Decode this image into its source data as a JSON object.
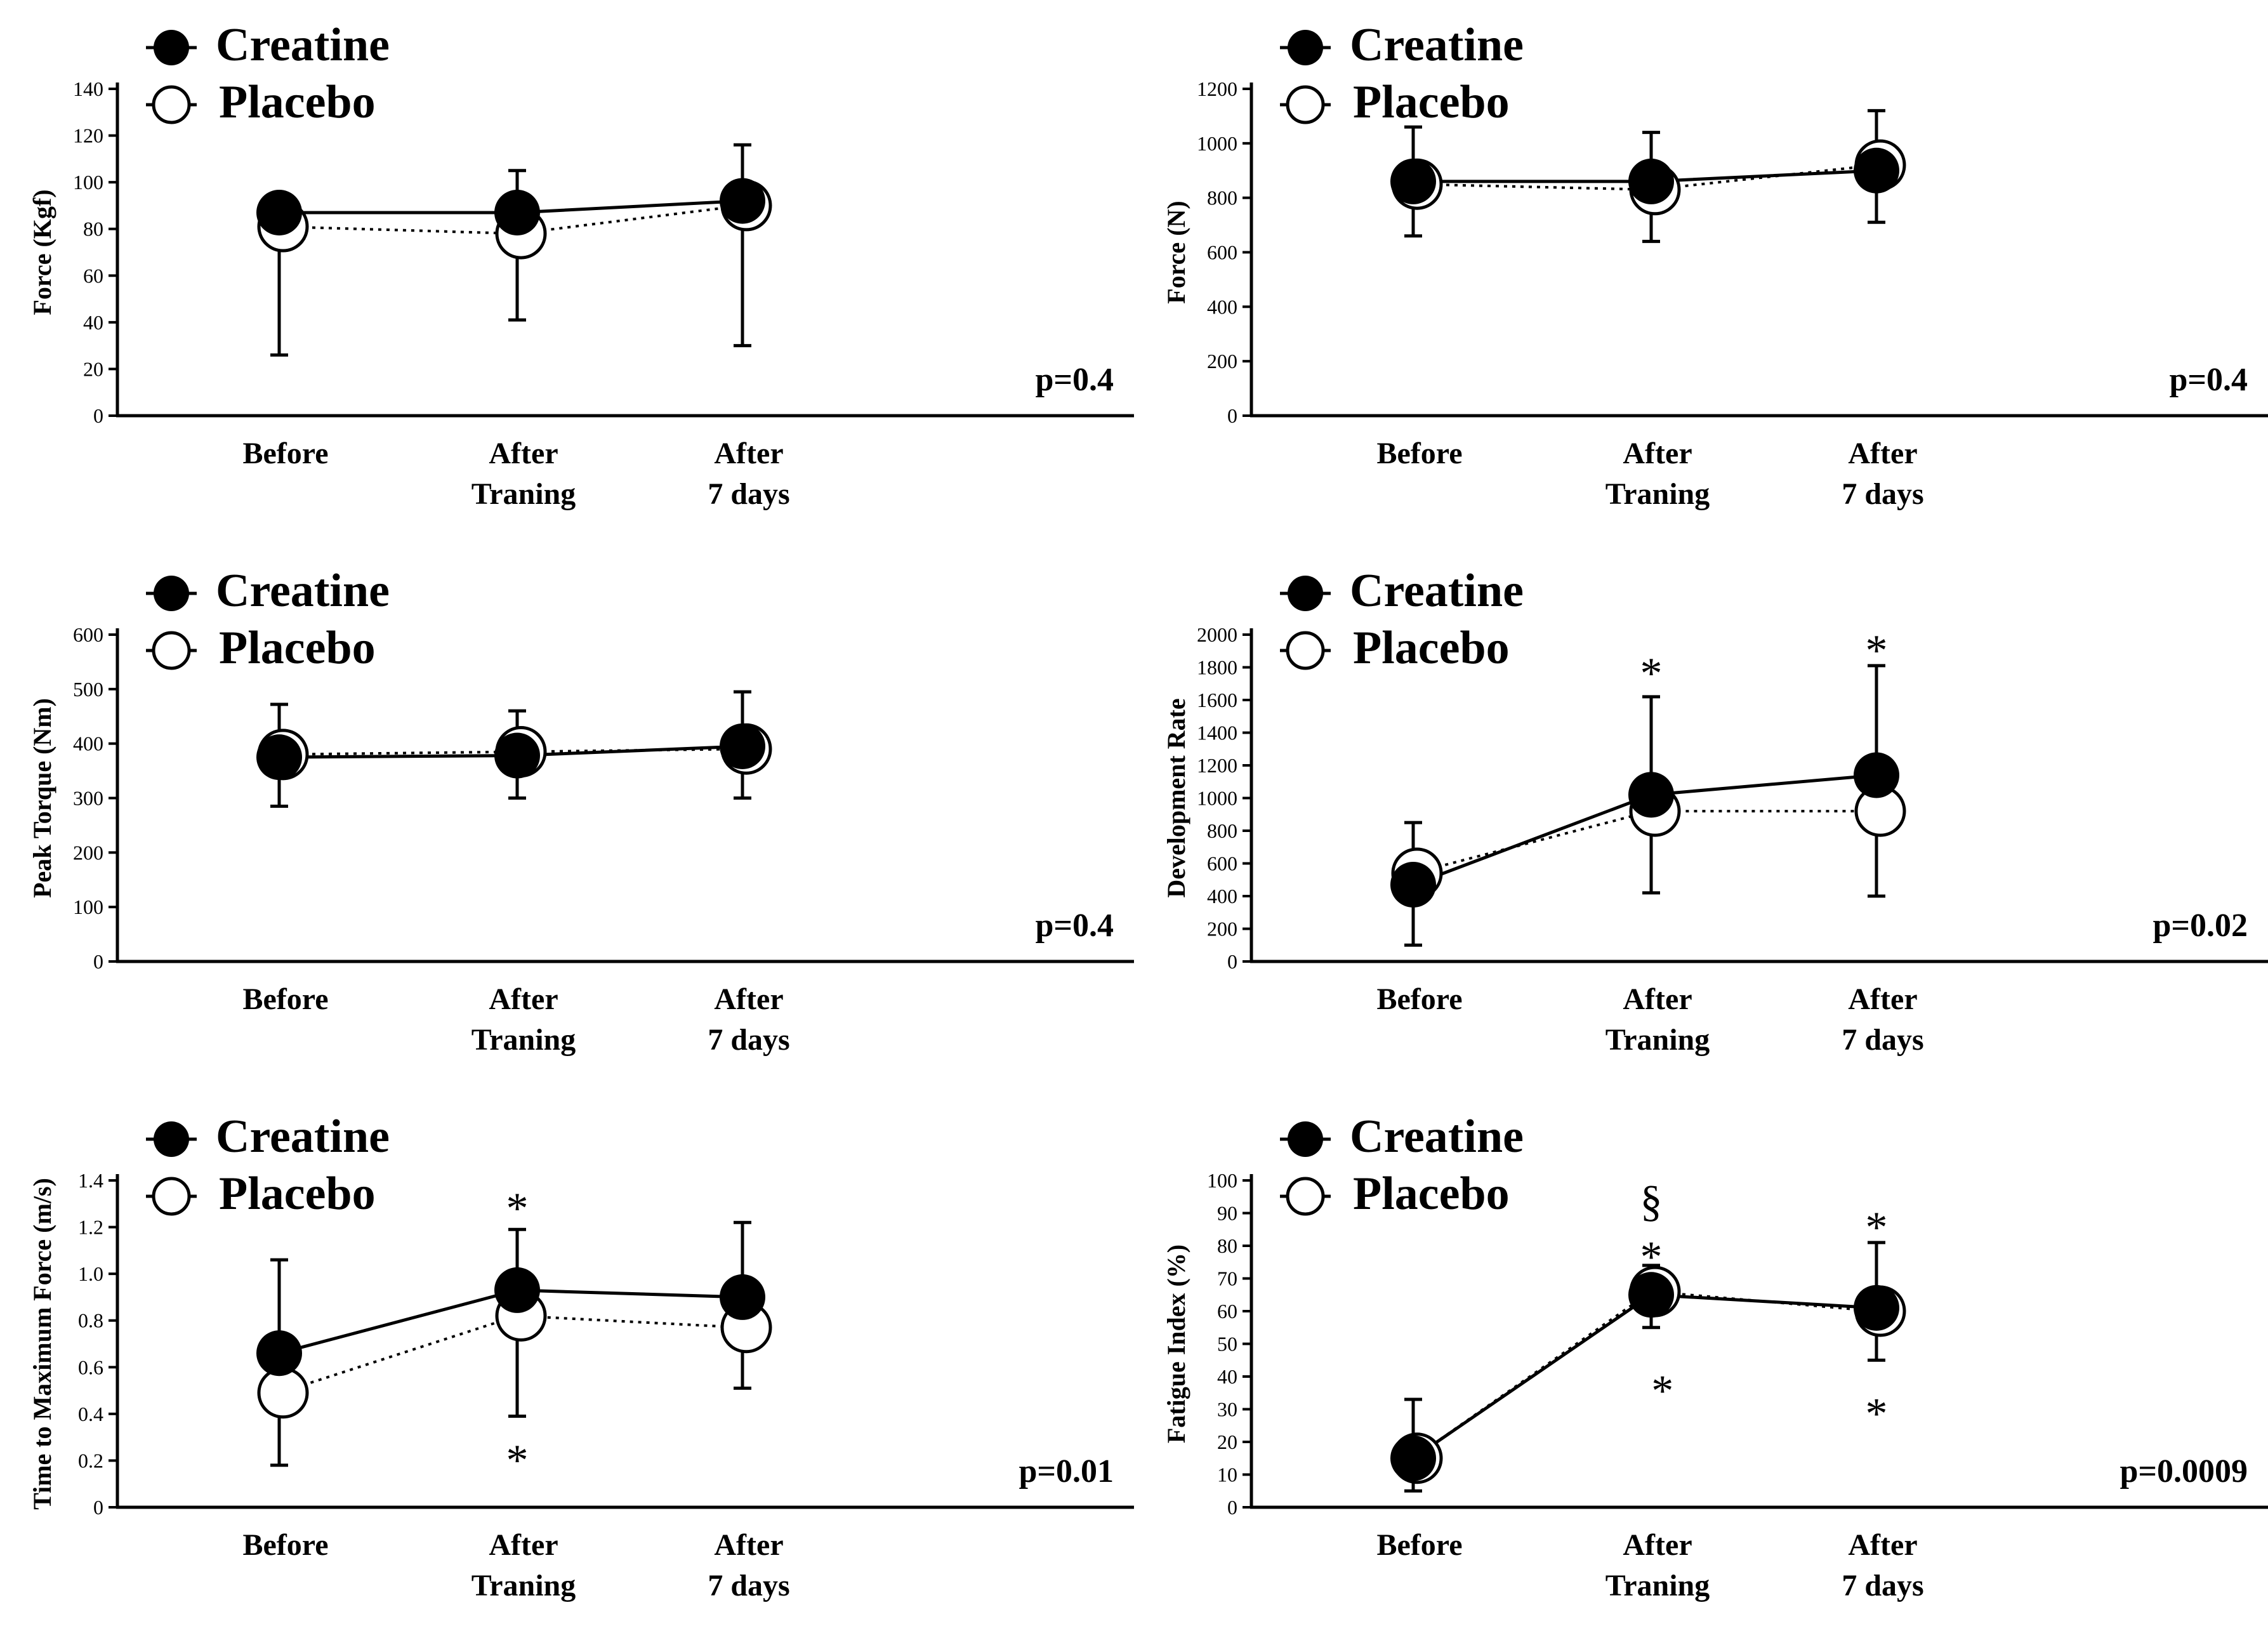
{
  "legend": {
    "creatine": "Creatine",
    "placebo": "Placebo"
  },
  "categories": [
    [
      "Before"
    ],
    [
      "After",
      "Traning"
    ],
    [
      "After",
      "7 days"
    ]
  ],
  "chart_data": [
    {
      "id": "p1",
      "type": "line",
      "title": "",
      "ylabel": "Force (Kgf)",
      "ylim": [
        0,
        140
      ],
      "yticks": [
        0,
        20,
        40,
        60,
        80,
        100,
        120,
        140
      ],
      "pvalue": "p=0.4",
      "series": [
        {
          "name": "Creatine",
          "values": [
            87,
            87,
            92
          ],
          "err_up": [
            0,
            18,
            24
          ],
          "err_down": [
            0,
            0,
            0
          ]
        },
        {
          "name": "Placebo",
          "values": [
            81,
            78,
            90
          ],
          "err_up": [
            0,
            0,
            0
          ],
          "err_down": [
            55,
            37,
            60
          ]
        }
      ],
      "annotations": []
    },
    {
      "id": "p2",
      "type": "line",
      "title": "",
      "ylabel": "Force (N)",
      "ylim": [
        0,
        1200
      ],
      "yticks": [
        0,
        200,
        400,
        600,
        800,
        1000,
        1200
      ],
      "pvalue": "p=0.4",
      "series": [
        {
          "name": "Creatine",
          "values": [
            860,
            860,
            900
          ],
          "err_up": [
            200,
            180,
            220
          ],
          "err_down": [
            0,
            0,
            0
          ]
        },
        {
          "name": "Placebo",
          "values": [
            850,
            830,
            920
          ],
          "err_up": [
            0,
            0,
            0
          ],
          "err_down": [
            190,
            190,
            210
          ]
        }
      ],
      "annotations": []
    },
    {
      "id": "p3",
      "type": "line",
      "title": "",
      "ylabel": "Peak Torque (Nm)",
      "ylim": [
        0,
        600
      ],
      "yticks": [
        0,
        100,
        200,
        300,
        400,
        500,
        600
      ],
      "pvalue": "p=0.4",
      "series": [
        {
          "name": "Creatine",
          "values": [
            375,
            378,
            395
          ],
          "err_up": [
            97,
            82,
            100
          ],
          "err_down": [
            0,
            0,
            0
          ]
        },
        {
          "name": "Placebo",
          "values": [
            380,
            385,
            390
          ],
          "err_up": [
            0,
            0,
            0
          ],
          "err_down": [
            95,
            85,
            90
          ]
        }
      ],
      "annotations": []
    },
    {
      "id": "p4",
      "type": "line",
      "title": "",
      "ylabel": "Development Rate",
      "ylim": [
        0,
        2000
      ],
      "yticks": [
        0,
        200,
        400,
        600,
        800,
        1000,
        1200,
        1400,
        1600,
        1800,
        2000
      ],
      "pvalue": "p=0.02",
      "series": [
        {
          "name": "Creatine",
          "values": [
            470,
            1020,
            1140
          ],
          "err_up": [
            380,
            600,
            670
          ],
          "err_down": [
            0,
            0,
            0
          ]
        },
        {
          "name": "Placebo",
          "values": [
            540,
            920,
            920
          ],
          "err_up": [
            0,
            0,
            0
          ],
          "err_down": [
            440,
            500,
            520
          ]
        }
      ],
      "annotations": [
        {
          "x": 1,
          "y": 1790,
          "text": "*"
        },
        {
          "x": 2,
          "y": 1930,
          "text": "*"
        }
      ]
    },
    {
      "id": "p5",
      "type": "line",
      "title": "",
      "ylabel": "Time to Maximum Force (m/s)",
      "ylim": [
        0,
        1.4
      ],
      "yticks": [
        0,
        0.2,
        0.4,
        0.6,
        0.8,
        1.0,
        1.2,
        1.4
      ],
      "ytick_labels": [
        "0",
        "0.2",
        "0.4",
        "0.6",
        "0.8",
        "1.0",
        "1.2",
        "1.4"
      ],
      "pvalue": "p=0.01",
      "series": [
        {
          "name": "Creatine",
          "values": [
            0.66,
            0.93,
            0.9
          ],
          "err_up": [
            0.4,
            0.26,
            0.32
          ],
          "err_down": [
            0,
            0,
            0
          ]
        },
        {
          "name": "Placebo",
          "values": [
            0.49,
            0.82,
            0.77
          ],
          "err_up": [
            0,
            0,
            0
          ],
          "err_down": [
            0.31,
            0.43,
            0.26
          ]
        }
      ],
      "annotations": [
        {
          "x": 1,
          "y": 1.3,
          "text": "*"
        },
        {
          "x": 1,
          "y": 0.22,
          "text": "*"
        }
      ]
    },
    {
      "id": "p6",
      "type": "line",
      "title": "",
      "ylabel": "Fatigue Index (%)",
      "ylim": [
        0,
        100
      ],
      "yticks": [
        0,
        10,
        20,
        30,
        40,
        50,
        60,
        70,
        80,
        90,
        100
      ],
      "pvalue": "p=0.0009",
      "series": [
        {
          "name": "Creatine",
          "values": [
            15,
            65,
            61
          ],
          "err_up": [
            18,
            9,
            20
          ],
          "err_down": [
            0,
            0,
            0
          ]
        },
        {
          "name": "Placebo",
          "values": [
            15,
            66,
            60
          ],
          "err_up": [
            0,
            0,
            0
          ],
          "err_down": [
            10,
            11,
            15
          ]
        }
      ],
      "annotations": [
        {
          "x": 1,
          "y": 95,
          "text": "§"
        },
        {
          "x": 1,
          "y": 78,
          "text": "*"
        },
        {
          "x": 1.05,
          "y": 37,
          "text": "*"
        },
        {
          "x": 2,
          "y": 87,
          "text": "*"
        },
        {
          "x": 2.05,
          "y": 30,
          "text": "*"
        }
      ]
    }
  ]
}
